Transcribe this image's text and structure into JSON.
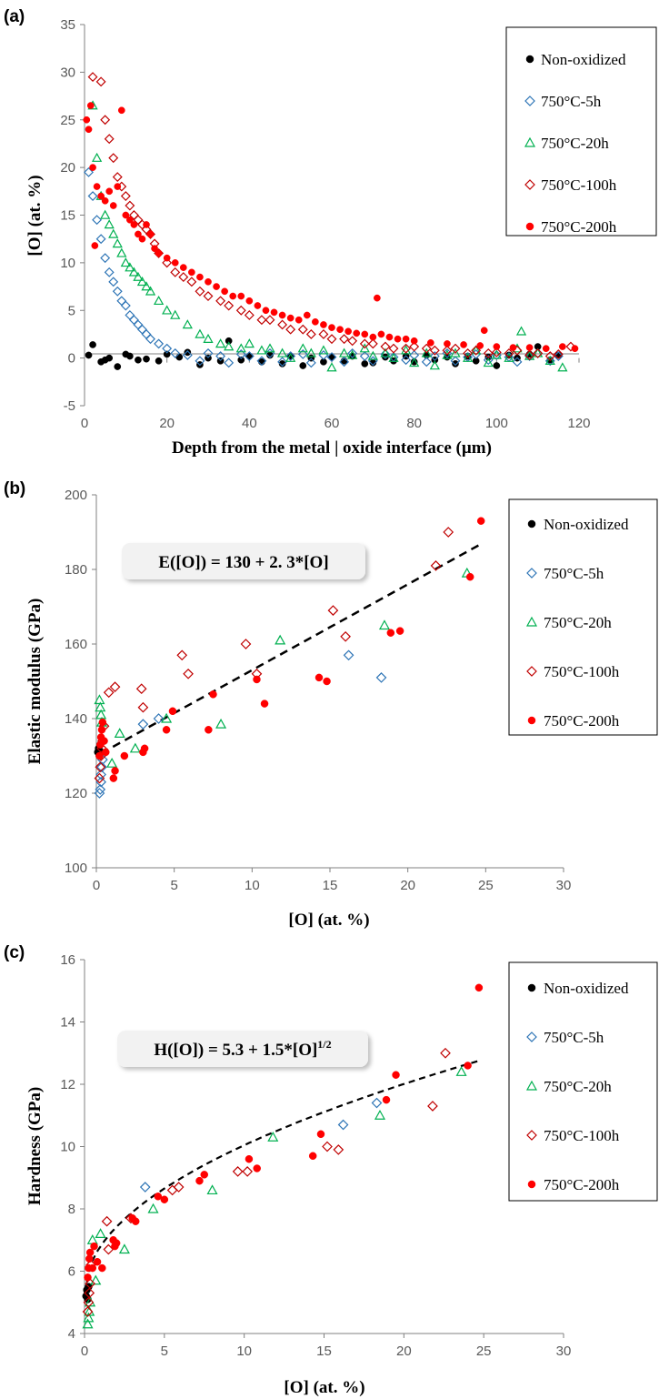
{
  "chart_data": [
    {
      "id": "a",
      "panel_label": "(a)",
      "type": "scatter",
      "xlabel": "Depth from the metal | oxide interface (µm)",
      "ylabel": "[O] (at. %)",
      "xlim": [
        0,
        120
      ],
      "ylim": [
        -5,
        35
      ],
      "xticks": [
        0,
        20,
        40,
        60,
        80,
        100,
        120
      ],
      "yticks": [
        -5,
        0,
        5,
        10,
        15,
        20,
        25,
        30,
        35
      ],
      "grid": false,
      "legend_position": "top-right",
      "series": [
        {
          "name": "Non-oxidized",
          "marker": "filled-circle",
          "color": "#000000",
          "x": [
            1,
            2,
            4,
            5,
            6,
            8,
            10,
            11,
            13,
            15,
            18,
            20,
            23,
            25,
            28,
            30,
            33,
            35,
            38,
            40,
            43,
            45,
            48,
            50,
            53,
            55,
            58,
            60,
            63,
            65,
            68,
            70,
            73,
            75,
            78,
            80,
            83,
            85,
            88,
            90,
            93,
            95,
            98,
            100,
            103,
            105,
            108,
            110,
            113,
            115
          ],
          "y": [
            0.3,
            1.4,
            -0.4,
            -0.2,
            0,
            -0.9,
            0.4,
            0.2,
            -0.2,
            -0.1,
            -0.3,
            0.4,
            0.1,
            0.6,
            -0.7,
            0,
            -0.3,
            1.8,
            -0.2,
            0.2,
            -0.4,
            0.3,
            -0.6,
            0.2,
            -0.8,
            0,
            -0.4,
            0.1,
            -0.3,
            0.2,
            -0.6,
            -0.5,
            0.1,
            -0.3,
            0.2,
            -0.4,
            0.3,
            -0.2,
            0.1,
            -0.6,
            0.2,
            -0.3,
            0.1,
            -0.8,
            0.3,
            0,
            0.4,
            1.2,
            -0.2,
            0.3
          ]
        },
        {
          "name": "750°C-5h",
          "marker": "open-diamond",
          "color": "#2E75B6",
          "x": [
            1,
            2,
            3,
            4,
            5,
            6,
            7,
            8,
            9,
            10,
            11,
            12,
            13,
            14,
            15,
            16,
            18,
            20,
            22,
            25,
            28,
            30,
            33,
            35,
            38,
            40,
            43,
            45,
            48,
            50,
            53,
            55,
            58,
            60,
            63,
            65,
            68,
            70,
            73,
            75,
            78,
            80,
            83,
            85,
            88,
            90,
            93,
            95,
            98,
            100,
            103,
            105,
            108,
            110,
            113,
            115
          ],
          "y": [
            19.5,
            17,
            14.5,
            12.5,
            10.5,
            9,
            8,
            7,
            6,
            5.5,
            4.5,
            4,
            3.5,
            3,
            2.5,
            2,
            1.5,
            1,
            0.5,
            0.3,
            -0.3,
            0.5,
            0.2,
            -0.5,
            0.4,
            0.2,
            -0.3,
            0.5,
            -0.4,
            0.2,
            0.4,
            -0.5,
            0.3,
            0.1,
            -0.4,
            0.5,
            0.2,
            -0.3,
            0.4,
            0.1,
            -0.2,
            0.3,
            -0.4,
            0.2,
            0.5,
            -0.3,
            0.1,
            0.4,
            -0.2,
            0.3,
            0.1,
            -0.4,
            0.2,
            0.5,
            -0.3,
            0.2
          ]
        },
        {
          "name": "750°C-20h",
          "marker": "open-triangle",
          "color": "#00B050",
          "x": [
            2,
            3,
            4,
            5,
            6,
            7,
            8,
            9,
            10,
            11,
            12,
            13,
            14,
            15,
            16,
            18,
            20,
            22,
            25,
            28,
            30,
            33,
            35,
            38,
            40,
            43,
            45,
            48,
            50,
            53,
            55,
            58,
            60,
            63,
            65,
            68,
            70,
            73,
            75,
            78,
            80,
            83,
            85,
            88,
            90,
            93,
            95,
            98,
            100,
            103,
            105,
            106,
            108,
            110,
            113,
            116
          ],
          "y": [
            26.5,
            21,
            17,
            15,
            14,
            13,
            12,
            11,
            10,
            9.5,
            9,
            8.5,
            8,
            7.5,
            7,
            6,
            5,
            4.5,
            3.5,
            2.5,
            2,
            1.5,
            1.2,
            1,
            1.5,
            0.8,
            1,
            0.5,
            0,
            1,
            0.5,
            0.8,
            -1,
            0.5,
            0.3,
            1,
            0.2,
            0.5,
            0,
            0.8,
            -0.5,
            0.5,
            -0.8,
            0.3,
            0.5,
            0,
            0.8,
            -0.5,
            0.3,
            0,
            1,
            2.8,
            0.2,
            0.5,
            -0.3,
            -1
          ]
        },
        {
          "name": "750°C-100h",
          "marker": "open-diamond",
          "color": "#C00000",
          "x": [
            2,
            4,
            5,
            6,
            7,
            8,
            9,
            10,
            11,
            12,
            13,
            14,
            15,
            16,
            17,
            18,
            20,
            22,
            24,
            26,
            28,
            30,
            33,
            35,
            38,
            40,
            43,
            45,
            48,
            50,
            53,
            55,
            58,
            60,
            63,
            65,
            68,
            70,
            73,
            75,
            78,
            80,
            83,
            85,
            88,
            90,
            93,
            95,
            98,
            100,
            103,
            105,
            108,
            110,
            113,
            115,
            118
          ],
          "y": [
            29.5,
            29,
            25,
            23,
            21,
            19,
            18,
            17,
            16,
            15,
            14.5,
            14,
            13.5,
            13,
            12,
            11,
            10,
            9,
            8.5,
            8,
            7,
            6.5,
            6,
            5.5,
            5,
            4.5,
            4,
            4,
            3.5,
            3,
            3,
            2.5,
            2.5,
            2,
            2,
            1.8,
            1.5,
            1.5,
            1.2,
            1,
            1,
            1.2,
            1,
            0.8,
            0.8,
            1,
            0.5,
            0.8,
            0.5,
            0.6,
            0.5,
            0.8,
            0.3,
            0.5,
            0.2,
            0.4,
            1.2
          ]
        },
        {
          "name": "750°C-200h",
          "marker": "filled-circle",
          "color": "#FF0000",
          "x": [
            0.5,
            1,
            1.5,
            2,
            2.5,
            3,
            4,
            5,
            6,
            7,
            8,
            9,
            10,
            11,
            12,
            13,
            14,
            15,
            16,
            17,
            18,
            20,
            22,
            24,
            26,
            28,
            30,
            32,
            34,
            36,
            38,
            40,
            42,
            44,
            46,
            48,
            50,
            52,
            54,
            56,
            58,
            60,
            62,
            64,
            66,
            68,
            70,
            71,
            72,
            74,
            76,
            78,
            80,
            84,
            88,
            92,
            96,
            97,
            100,
            104,
            108,
            112,
            116,
            119
          ],
          "y": [
            25,
            24,
            26.5,
            20,
            11.8,
            18,
            17,
            16.5,
            17.5,
            16,
            18,
            26,
            15,
            14.5,
            14,
            13,
            12.5,
            14,
            13,
            11.5,
            11,
            10.5,
            10,
            9.5,
            9,
            8.5,
            8,
            7.5,
            7,
            6.5,
            6.5,
            6,
            5.5,
            5,
            4.8,
            4.5,
            4.2,
            4,
            4.5,
            3.8,
            3.5,
            3.2,
            3,
            2.8,
            2.6,
            2.5,
            2.2,
            6.3,
            2.5,
            2.2,
            2,
            2,
            1.8,
            1.6,
            1.5,
            1.4,
            1.3,
            2.9,
            1.2,
            1.1,
            1.1,
            1,
            1.2,
            1
          ]
        }
      ]
    },
    {
      "id": "b",
      "panel_label": "(b)",
      "type": "scatter",
      "xlabel": "[O] (at. %)",
      "ylabel": "Elastic modulus (GPa)",
      "xlim": [
        0,
        30
      ],
      "ylim": [
        100,
        200
      ],
      "xticks": [
        0,
        5,
        10,
        15,
        20,
        25,
        30
      ],
      "yticks": [
        100,
        120,
        140,
        160,
        180,
        200
      ],
      "grid": false,
      "legend_position": "top-right",
      "annotation": "E([O]) = 130 + 2. 3*[O]",
      "fit": {
        "intercept": 130,
        "slope": 2.3,
        "x_range": [
          0.3,
          24.8
        ]
      },
      "series": [
        {
          "name": "Non-oxidized",
          "marker": "filled-circle",
          "color": "#000000",
          "x": [
            0.1,
            0.15,
            0.2,
            0.25,
            0.3
          ],
          "y": [
            131,
            132,
            130,
            133,
            131
          ]
        },
        {
          "name": "750°C-5h",
          "marker": "open-diamond",
          "color": "#2E75B6",
          "x": [
            0.2,
            0.25,
            0.3,
            0.3,
            0.35,
            0.4,
            3,
            4,
            16.2,
            18.3
          ],
          "y": [
            120,
            121,
            123,
            125,
            127,
            129,
            138.5,
            140,
            157,
            151
          ]
        },
        {
          "name": "750°C-20h",
          "marker": "open-triangle",
          "color": "#00B050",
          "x": [
            0.2,
            0.25,
            0.3,
            0.35,
            1,
            1.5,
            2.5,
            4.5,
            8,
            11.8,
            18.5,
            23.8
          ],
          "y": [
            145,
            143,
            141,
            139,
            128,
            136,
            132,
            140,
            138.5,
            161,
            165,
            179
          ]
        },
        {
          "name": "750°C-100h",
          "marker": "open-diamond",
          "color": "#C00000",
          "x": [
            0.2,
            0.25,
            0.3,
            0.35,
            0.4,
            0.5,
            0.8,
            1.2,
            2.9,
            3,
            5.5,
            5.9,
            9.6,
            10.3,
            15.2,
            16,
            21.8,
            22.6
          ],
          "y": [
            124,
            127,
            130,
            132,
            134,
            138,
            147,
            148.5,
            148,
            143,
            157,
            152,
            160,
            152,
            169,
            162,
            181,
            190
          ]
        },
        {
          "name": "750°C-200h",
          "marker": "filled-circle",
          "color": "#FF0000",
          "x": [
            0.2,
            0.25,
            0.3,
            0.35,
            0.4,
            0.5,
            0.6,
            1.1,
            1.2,
            1.8,
            3,
            3.1,
            4.5,
            4.9,
            7.2,
            7.5,
            10.3,
            10.8,
            14.3,
            14.8,
            18.9,
            19.5,
            24,
            24.7
          ],
          "y": [
            130,
            133,
            135,
            137,
            139,
            134,
            131,
            124,
            126,
            130,
            131,
            132,
            137,
            142,
            137,
            146.5,
            150.5,
            144,
            151,
            150,
            163,
            163.5,
            178,
            193
          ]
        }
      ]
    },
    {
      "id": "c",
      "panel_label": "(c)",
      "type": "scatter",
      "xlabel": "[O] (at. %)",
      "ylabel": "Hardness (GPa)",
      "xlim": [
        0,
        30
      ],
      "ylim": [
        4,
        16
      ],
      "xticks": [
        0,
        5,
        10,
        15,
        20,
        25,
        30
      ],
      "yticks": [
        4,
        6,
        8,
        10,
        12,
        14,
        16
      ],
      "grid": false,
      "legend_position": "top-right",
      "annotation": {
        "base": "H([O]) = 5.3 + 1.5*[O]",
        "sup": "1/2"
      },
      "fit": {
        "intercept": 5.3,
        "coef": 1.5,
        "power": 0.5,
        "x_range": [
          0,
          24.8
        ]
      },
      "series": [
        {
          "name": "Non-oxidized",
          "marker": "filled-circle",
          "color": "#000000",
          "x": [
            0.1,
            0.15,
            0.2,
            0.25
          ],
          "y": [
            5.2,
            5.4,
            5.1,
            5.5
          ]
        },
        {
          "name": "750°C-5h",
          "marker": "open-diamond",
          "color": "#2E75B6",
          "x": [
            3.8,
            16.2,
            18.3
          ],
          "y": [
            8.7,
            10.7,
            11.4
          ]
        },
        {
          "name": "750°C-20h",
          "marker": "open-triangle",
          "color": "#00B050",
          "x": [
            0.2,
            0.25,
            0.3,
            0.35,
            0.5,
            0.7,
            1,
            2.5,
            4.3,
            8,
            11.8,
            18.5,
            23.6
          ],
          "y": [
            4.3,
            4.5,
            4.7,
            5,
            7,
            5.7,
            7.2,
            6.7,
            8,
            8.6,
            10.3,
            11,
            12.4
          ]
        },
        {
          "name": "750°C-100h",
          "marker": "open-diamond",
          "color": "#C00000",
          "x": [
            0.2,
            0.25,
            0.3,
            0.35,
            0.4,
            1.4,
            1.5,
            2.9,
            5.5,
            5.9,
            9.6,
            10.2,
            15.2,
            15.9,
            21.8,
            22.6
          ],
          "y": [
            4.7,
            5,
            5.3,
            5.6,
            6.2,
            7.6,
            6.7,
            7.7,
            8.6,
            8.7,
            9.2,
            9.2,
            10,
            9.9,
            11.3,
            13
          ]
        },
        {
          "name": "750°C-200h",
          "marker": "filled-circle",
          "color": "#FF0000",
          "x": [
            0.2,
            0.25,
            0.3,
            0.35,
            0.5,
            0.6,
            0.8,
            1.1,
            1.8,
            1.9,
            2,
            3,
            3.2,
            4.6,
            5,
            7.2,
            7.5,
            10.3,
            10.8,
            14.3,
            14.8,
            18.9,
            19.5,
            24,
            24.7
          ],
          "y": [
            5.8,
            6.1,
            6.4,
            6.6,
            6.1,
            6.8,
            6.3,
            6.1,
            7,
            6.8,
            6.9,
            7.7,
            7.6,
            8.4,
            8.3,
            8.9,
            9.1,
            9.6,
            9.3,
            9.7,
            10.4,
            11.5,
            12.3,
            12.6,
            15.1
          ]
        }
      ]
    }
  ]
}
